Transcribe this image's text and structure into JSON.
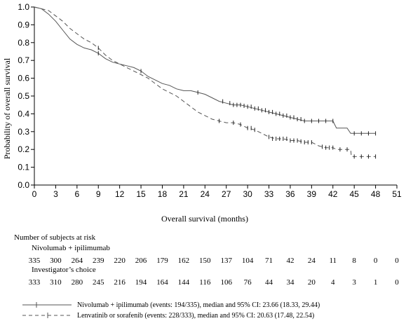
{
  "chart_data": {
    "type": "line",
    "title": "",
    "xlabel": "Overall survival (months)",
    "ylabel": "Probability of overall survival",
    "xlim": [
      0,
      51
    ],
    "ylim": [
      0.0,
      1.0
    ],
    "x_ticks": [
      0,
      3,
      6,
      9,
      12,
      15,
      18,
      21,
      24,
      27,
      30,
      33,
      36,
      39,
      42,
      45,
      48,
      51
    ],
    "y_ticks": [
      "0.0",
      "0.1",
      "0.2",
      "0.3",
      "0.4",
      "0.5",
      "0.6",
      "0.7",
      "0.8",
      "0.9",
      "1.0"
    ],
    "series": [
      {
        "name": "Nivolumab + ipilimumab",
        "style": "solid",
        "color": "#555555",
        "points": [
          [
            0,
            1.0
          ],
          [
            1,
            0.99
          ],
          [
            2,
            0.96
          ],
          [
            3,
            0.92
          ],
          [
            4,
            0.87
          ],
          [
            5,
            0.82
          ],
          [
            6,
            0.79
          ],
          [
            7,
            0.77
          ],
          [
            8,
            0.76
          ],
          [
            9,
            0.74
          ],
          [
            10,
            0.71
          ],
          [
            11,
            0.69
          ],
          [
            12,
            0.68
          ],
          [
            13,
            0.67
          ],
          [
            14,
            0.66
          ],
          [
            15,
            0.64
          ],
          [
            16,
            0.61
          ],
          [
            17,
            0.59
          ],
          [
            18,
            0.57
          ],
          [
            19,
            0.56
          ],
          [
            20,
            0.54
          ],
          [
            21,
            0.53
          ],
          [
            22,
            0.53
          ],
          [
            23,
            0.52
          ],
          [
            24,
            0.51
          ],
          [
            25,
            0.49
          ],
          [
            26,
            0.47
          ],
          [
            27,
            0.46
          ],
          [
            28,
            0.45
          ],
          [
            29,
            0.45
          ],
          [
            30,
            0.44
          ],
          [
            31,
            0.43
          ],
          [
            32,
            0.42
          ],
          [
            33,
            0.41
          ],
          [
            34,
            0.4
          ],
          [
            35,
            0.39
          ],
          [
            36,
            0.38
          ],
          [
            37,
            0.37
          ],
          [
            38,
            0.36
          ],
          [
            39,
            0.36
          ],
          [
            40,
            0.36
          ],
          [
            41,
            0.36
          ],
          [
            42,
            0.36
          ],
          [
            42.5,
            0.32
          ],
          [
            44,
            0.32
          ],
          [
            44.5,
            0.29
          ],
          [
            48,
            0.29
          ]
        ],
        "censored": [
          [
            9,
            0.74
          ],
          [
            15,
            0.64
          ],
          [
            23,
            0.52
          ],
          [
            26.5,
            0.47
          ],
          [
            27.5,
            0.46
          ],
          [
            28,
            0.45
          ],
          [
            28.5,
            0.45
          ],
          [
            29,
            0.45
          ],
          [
            29.5,
            0.445
          ],
          [
            30,
            0.44
          ],
          [
            30.5,
            0.44
          ],
          [
            31,
            0.43
          ],
          [
            31.5,
            0.43
          ],
          [
            32,
            0.42
          ],
          [
            32.5,
            0.42
          ],
          [
            33,
            0.41
          ],
          [
            33.5,
            0.41
          ],
          [
            34,
            0.4
          ],
          [
            34.5,
            0.4
          ],
          [
            35,
            0.39
          ],
          [
            35.5,
            0.39
          ],
          [
            36,
            0.38
          ],
          [
            36.5,
            0.38
          ],
          [
            37,
            0.37
          ],
          [
            37.5,
            0.37
          ],
          [
            38,
            0.36
          ],
          [
            39,
            0.36
          ],
          [
            40,
            0.36
          ],
          [
            41,
            0.36
          ],
          [
            42,
            0.36
          ],
          [
            45,
            0.29
          ],
          [
            46,
            0.29
          ],
          [
            47,
            0.29
          ],
          [
            48,
            0.29
          ]
        ]
      },
      {
        "name": "Lenvatinib or sorafenib",
        "style": "dashed",
        "color": "#555555",
        "points": [
          [
            0,
            1.0
          ],
          [
            1,
            0.99
          ],
          [
            2,
            0.98
          ],
          [
            3,
            0.95
          ],
          [
            4,
            0.92
          ],
          [
            5,
            0.88
          ],
          [
            6,
            0.85
          ],
          [
            7,
            0.82
          ],
          [
            8,
            0.8
          ],
          [
            9,
            0.77
          ],
          [
            10,
            0.73
          ],
          [
            11,
            0.7
          ],
          [
            12,
            0.68
          ],
          [
            13,
            0.66
          ],
          [
            14,
            0.64
          ],
          [
            15,
            0.62
          ],
          [
            16,
            0.6
          ],
          [
            17,
            0.57
          ],
          [
            18,
            0.54
          ],
          [
            19,
            0.52
          ],
          [
            20,
            0.5
          ],
          [
            21,
            0.47
          ],
          [
            22,
            0.44
          ],
          [
            23,
            0.41
          ],
          [
            24,
            0.39
          ],
          [
            25,
            0.37
          ],
          [
            26,
            0.36
          ],
          [
            27,
            0.35
          ],
          [
            28,
            0.35
          ],
          [
            29,
            0.34
          ],
          [
            30,
            0.32
          ],
          [
            31,
            0.31
          ],
          [
            32,
            0.29
          ],
          [
            33,
            0.27
          ],
          [
            34,
            0.26
          ],
          [
            35,
            0.26
          ],
          [
            36,
            0.25
          ],
          [
            37,
            0.25
          ],
          [
            38,
            0.24
          ],
          [
            39,
            0.24
          ],
          [
            40,
            0.22
          ],
          [
            41,
            0.21
          ],
          [
            42,
            0.21
          ],
          [
            42.5,
            0.2
          ],
          [
            44.5,
            0.2
          ],
          [
            44.6,
            0.16
          ],
          [
            48,
            0.16
          ]
        ],
        "censored": [
          [
            9,
            0.77
          ],
          [
            26,
            0.36
          ],
          [
            28,
            0.35
          ],
          [
            29,
            0.34
          ],
          [
            30,
            0.32
          ],
          [
            30.5,
            0.32
          ],
          [
            31,
            0.31
          ],
          [
            33,
            0.27
          ],
          [
            33.5,
            0.26
          ],
          [
            34,
            0.26
          ],
          [
            34.5,
            0.26
          ],
          [
            35,
            0.26
          ],
          [
            35.5,
            0.26
          ],
          [
            36,
            0.25
          ],
          [
            36.5,
            0.25
          ],
          [
            37,
            0.25
          ],
          [
            37.5,
            0.245
          ],
          [
            38,
            0.24
          ],
          [
            38.5,
            0.24
          ],
          [
            39,
            0.24
          ],
          [
            40.5,
            0.215
          ],
          [
            41,
            0.21
          ],
          [
            41.5,
            0.21
          ],
          [
            42,
            0.21
          ],
          [
            43,
            0.2
          ],
          [
            44,
            0.2
          ],
          [
            45,
            0.16
          ],
          [
            46,
            0.16
          ],
          [
            47,
            0.16
          ],
          [
            48,
            0.16
          ]
        ]
      }
    ]
  },
  "risk_table": {
    "title": "Number of subjects at risk",
    "time_points": [
      0,
      3,
      6,
      9,
      12,
      15,
      18,
      21,
      24,
      27,
      30,
      33,
      36,
      39,
      42,
      45,
      48,
      51
    ],
    "groups": [
      {
        "label": "Nivolumab + ipilimumab",
        "values": [
          "335",
          "300",
          "264",
          "239",
          "220",
          "206",
          "179",
          "162",
          "150",
          "137",
          "104",
          "71",
          "42",
          "24",
          "11",
          "8",
          "0",
          "0"
        ]
      },
      {
        "label": "Investigator’s choice",
        "values": [
          "333",
          "310",
          "280",
          "245",
          "216",
          "194",
          "164",
          "144",
          "116",
          "106",
          "76",
          "44",
          "34",
          "20",
          "4",
          "3",
          "1",
          "0"
        ]
      }
    ]
  },
  "legend": [
    {
      "text": "Nivolumab + ipilimumab (events: 194/335), median and 95% CI: 23.66 (18.33, 29.44)",
      "style": "solid"
    },
    {
      "text": "Lenvatinib or sorafenib (events: 228/333), median and 95% CI: 20.63 (17.48, 22.54)",
      "style": "dashed"
    }
  ]
}
